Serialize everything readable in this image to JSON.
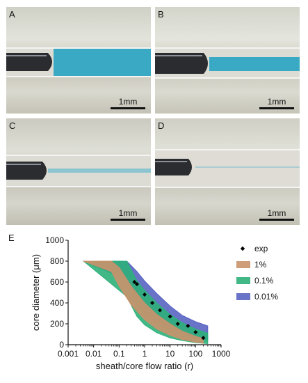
{
  "panels": [
    {
      "letter": "A",
      "scale_label": "1mm"
    },
    {
      "letter": "B",
      "scale_label": "1mm"
    },
    {
      "letter": "C",
      "scale_label": "1mm"
    },
    {
      "letter": "D",
      "scale_label": "1mm"
    }
  ],
  "colors": {
    "core_fluid": "#3aa9c4",
    "exp_marker": "#000000",
    "band_1pct": "#c9926b",
    "band_01pct": "#2db07a",
    "band_001pct": "#5964c2"
  },
  "chart_data": {
    "type": "area",
    "panel_label": "E",
    "title": "",
    "xlabel": "sheath/core flow ratio (r)",
    "ylabel": "core diameter (μm)",
    "x_scale": "log",
    "xlim": [
      0.001,
      1000
    ],
    "ylim": [
      0,
      1000
    ],
    "x_ticks": [
      "0.001",
      "0.01",
      "0.1",
      "1",
      "10",
      "100",
      "1000"
    ],
    "y_ticks": [
      "0",
      "200",
      "400",
      "600",
      "800",
      "1000"
    ],
    "legend_position": "right",
    "series": [
      {
        "name": "0.01%",
        "type": "band",
        "color": "#5964c2",
        "x": [
          0.004,
          0.2,
          0.5,
          1,
          3,
          10,
          30,
          100,
          300
        ],
        "upper": [
          800,
          800,
          700,
          610,
          490,
          370,
          280,
          220,
          180
        ],
        "lower": [
          800,
          620,
          390,
          300,
          210,
          140,
          100,
          70,
          40
        ]
      },
      {
        "name": "0.1%",
        "type": "band",
        "color": "#2db07a",
        "x": [
          0.004,
          0.2,
          0.5,
          1,
          3,
          10,
          30,
          100,
          300
        ],
        "upper": [
          800,
          800,
          610,
          520,
          400,
          290,
          210,
          150,
          110
        ],
        "lower": [
          800,
          460,
          270,
          190,
          115,
          65,
          40,
          20,
          10
        ]
      },
      {
        "name": "1%",
        "type": "band",
        "color": "#c9926b",
        "x": [
          0.004,
          0.05,
          0.1,
          0.3,
          1,
          3,
          10,
          30,
          100,
          200
        ],
        "upper": [
          800,
          800,
          740,
          560,
          400,
          290,
          200,
          130,
          80,
          60
        ],
        "lower": [
          800,
          700,
          560,
          380,
          240,
          150,
          90,
          50,
          25,
          15
        ]
      },
      {
        "name": "exp",
        "type": "scatter",
        "color": "#000000",
        "x": [
          0.4,
          0.5,
          1,
          2,
          4,
          10,
          20,
          50,
          100,
          200
        ],
        "y": [
          600,
          580,
          480,
          400,
          330,
          270,
          200,
          180,
          120,
          65
        ]
      }
    ],
    "legend": [
      "exp",
      "1%",
      "0.1%",
      "0.01%"
    ]
  }
}
